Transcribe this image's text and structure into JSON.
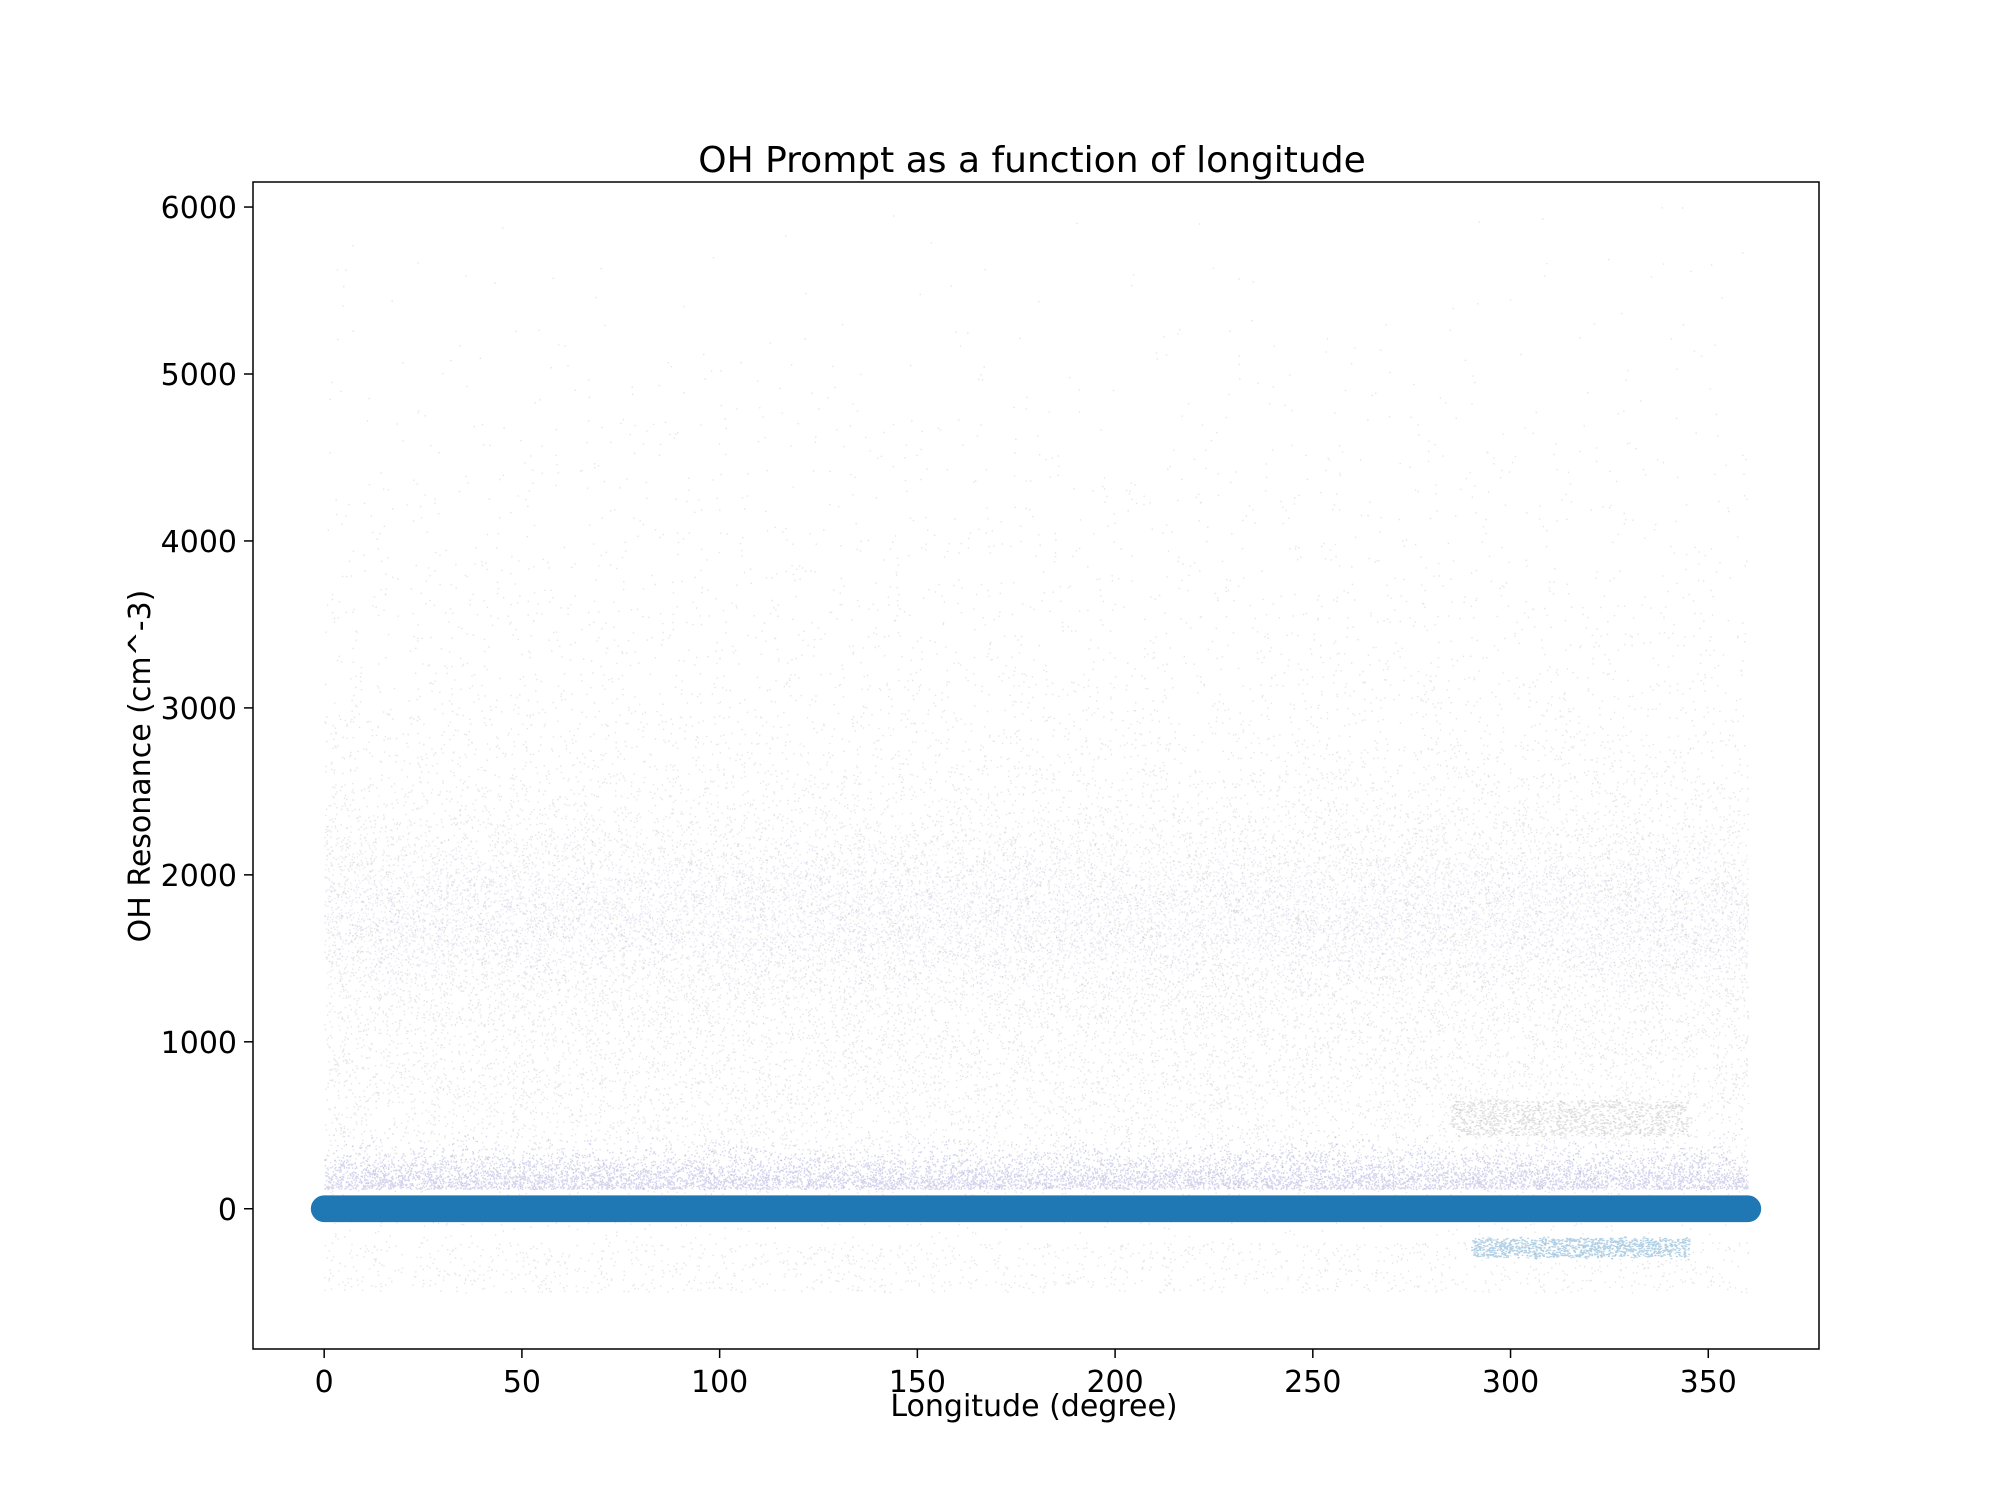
{
  "chart_data": {
    "type": "scatter",
    "title": "OH Prompt as a function of longitude",
    "xlabel": "Longitude (degree)",
    "ylabel": "OH Resonance (cm^-3)",
    "xlim": [
      -18,
      378
    ],
    "ylim": [
      -840,
      6150
    ],
    "xticks": [
      0,
      50,
      100,
      150,
      200,
      250,
      300,
      350
    ],
    "yticks": [
      0,
      1000,
      2000,
      3000,
      4000,
      5000,
      6000
    ],
    "grid": false,
    "legend": "none",
    "colors": {
      "dense_core": "#1f77b4",
      "mid_band": "#3b3bb0",
      "sparse_points": "#000000"
    },
    "series": [
      {
        "description_x_range": [
          0,
          360
        ],
        "core_band_y_range": [
          -80,
          80
        ],
        "secondary_band_y_range": [
          1400,
          2100
        ],
        "diffuse_cloud_y_range": [
          -500,
          6000
        ],
        "local_features": [
          {
            "x_range": [
              285,
              345
            ],
            "y_range": [
              450,
              640
            ]
          },
          {
            "x_range": [
              290,
              345
            ],
            "y_range": [
              -280,
              -180
            ]
          }
        ]
      }
    ]
  }
}
